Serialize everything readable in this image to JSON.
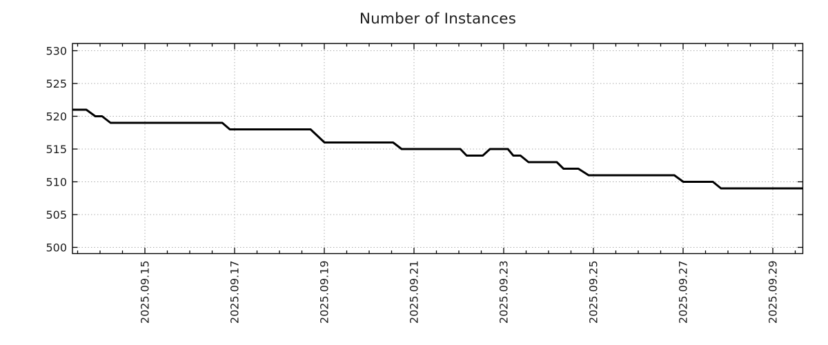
{
  "chart_data": {
    "type": "line",
    "title": "Number of Instances",
    "xlabel": "",
    "ylabel": "",
    "legend": "none",
    "grid": true,
    "line_color": "#000000",
    "line_width": 3,
    "grid_color": "#a6a6a6",
    "axis_color": "#000000",
    "text_color": "#1c1c1c",
    "ylim": [
      499.05,
      531.1
    ],
    "xlim_days": [
      0,
      16.285
    ],
    "yticks": [
      500,
      505,
      510,
      515,
      520,
      525,
      530
    ],
    "xticks": [
      {
        "pos": 1.615,
        "label": "2025.09.15"
      },
      {
        "pos": 3.615,
        "label": "2025.09.17"
      },
      {
        "pos": 5.615,
        "label": "2025.09.19"
      },
      {
        "pos": 7.615,
        "label": "2025.09.21"
      },
      {
        "pos": 9.615,
        "label": "2025.09.23"
      },
      {
        "pos": 11.615,
        "label": "2025.09.25"
      },
      {
        "pos": 13.615,
        "label": "2025.09.27"
      },
      {
        "pos": 15.615,
        "label": "2025.09.29"
      }
    ],
    "minor_xtick_phase_days": 0.115,
    "minor_xtick_step_days": 0.5,
    "series": [
      {
        "name": "instances",
        "points": [
          [
            0.0,
            521
          ],
          [
            0.31,
            521
          ],
          [
            0.51,
            520
          ],
          [
            0.66,
            520
          ],
          [
            0.85,
            519
          ],
          [
            3.34,
            519
          ],
          [
            3.51,
            518
          ],
          [
            5.31,
            518
          ],
          [
            5.62,
            516
          ],
          [
            7.15,
            516
          ],
          [
            7.34,
            515
          ],
          [
            8.65,
            515
          ],
          [
            8.79,
            514
          ],
          [
            9.15,
            514
          ],
          [
            9.31,
            515
          ],
          [
            9.71,
            515
          ],
          [
            9.83,
            514
          ],
          [
            9.99,
            514
          ],
          [
            10.17,
            513
          ],
          [
            10.8,
            513
          ],
          [
            10.95,
            512
          ],
          [
            11.28,
            512
          ],
          [
            11.51,
            511
          ],
          [
            13.42,
            511
          ],
          [
            13.62,
            510
          ],
          [
            14.28,
            510
          ],
          [
            14.46,
            509
          ],
          [
            16.285,
            509
          ]
        ]
      }
    ]
  }
}
